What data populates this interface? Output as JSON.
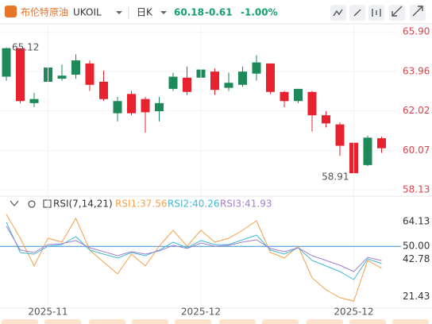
{
  "header": {
    "name": "布伦特原油",
    "symbol": "UKOIL",
    "period": "日K",
    "price": 60.18,
    "change": -0.61,
    "change_pct": "-1.00%"
  },
  "chart_data": [
    {
      "type": "candlestick",
      "up_color": "#1e8a5a",
      "down_color": "#e8212e",
      "categories": [
        null,
        null,
        null,
        "2025-11",
        null,
        null,
        null,
        null,
        null,
        null,
        null,
        null,
        null,
        null,
        "2025-12",
        null,
        null,
        null,
        null,
        null,
        null,
        null,
        null,
        null,
        null,
        "2025-12",
        null,
        null
      ],
      "open": [
        63.7,
        65.1,
        62.4,
        63.45,
        63.6,
        63.8,
        64.35,
        63.45,
        61.9,
        62.85,
        62.6,
        62.0,
        63.1,
        63.65,
        63.65,
        63.95,
        63.15,
        63.3,
        63.85,
        64.35,
        62.95,
        62.5,
        62.95,
        61.8,
        61.35,
        60.45,
        59.35,
        60.67
      ],
      "high": [
        65.12,
        65.1,
        62.9,
        64.4,
        64.3,
        64.8,
        64.5,
        64.0,
        62.7,
        63.0,
        62.7,
        62.7,
        63.9,
        64.2,
        64.4,
        64.1,
        63.9,
        64.2,
        64.75,
        64.35,
        63.0,
        63.1,
        63.0,
        62.0,
        61.45,
        60.5,
        60.8,
        60.75
      ],
      "low": [
        63.5,
        62.4,
        62.2,
        63.2,
        63.5,
        63.6,
        63.0,
        62.5,
        61.5,
        61.8,
        60.95,
        61.5,
        63.0,
        62.8,
        63.5,
        62.8,
        63.0,
        63.2,
        63.5,
        62.85,
        62.2,
        62.4,
        61.0,
        61.2,
        59.8,
        58.91,
        59.3,
        59.95
      ],
      "close": [
        65.1,
        62.5,
        62.6,
        64.15,
        63.75,
        64.5,
        63.3,
        62.6,
        62.5,
        61.9,
        61.95,
        62.4,
        63.7,
        62.95,
        64.05,
        63.05,
        63.4,
        63.95,
        64.4,
        62.95,
        62.5,
        63.1,
        61.8,
        61.4,
        60.3,
        58.95,
        60.7,
        60.18
      ],
      "ylim": [
        57.9,
        66.3
      ],
      "yticks": [
        {
          "value": 65.9,
          "label": "65.90"
        },
        63.96,
        62.02,
        60.07,
        58.13
      ],
      "grid": true
    },
    {
      "type": "line",
      "title": "RSI(7,14,21)",
      "series": [
        {
          "name": "RSI1:37.56",
          "color": "#f5a04a",
          "values": [
            68.1,
            54.6,
            38.9,
            54.6,
            52.4,
            65.9,
            47.9,
            41.1,
            34.4,
            45.6,
            38.9,
            50.1,
            59.1,
            50.1,
            59.1,
            52.4,
            54.6,
            59.1,
            64.5,
            46.5,
            43.4,
            50.1,
            32.1,
            25.4,
            20.9,
            19.0,
            42.0,
            37.56
          ]
        },
        {
          "name": "RSI2:40.26",
          "color": "#3fb8d4",
          "values": [
            63.6,
            46.5,
            45.6,
            50.1,
            51.0,
            55.5,
            47.9,
            45.6,
            43.4,
            46.5,
            44.7,
            47.9,
            52.4,
            49.2,
            53.3,
            51.0,
            51.0,
            53.7,
            56.4,
            47.9,
            45.6,
            49.2,
            42.0,
            38.9,
            35.7,
            31.2,
            42.9,
            40.26
          ]
        },
        {
          "name": "RSI3:41.93",
          "color": "#a57fd0",
          "values": [
            61.4,
            47.9,
            46.5,
            51.0,
            51.5,
            53.3,
            49.2,
            47.0,
            44.7,
            47.0,
            45.6,
            47.4,
            50.6,
            48.8,
            51.9,
            50.1,
            50.6,
            52.4,
            53.7,
            48.8,
            47.0,
            49.2,
            44.7,
            42.0,
            39.3,
            35.7,
            43.8,
            41.93
          ]
        }
      ],
      "ylim": [
        15,
        78
      ],
      "yticks": [
        64.13,
        {
          "value": 50,
          "label": "50.00"
        },
        42.78,
        21.43
      ],
      "hline": 50
    }
  ]
}
